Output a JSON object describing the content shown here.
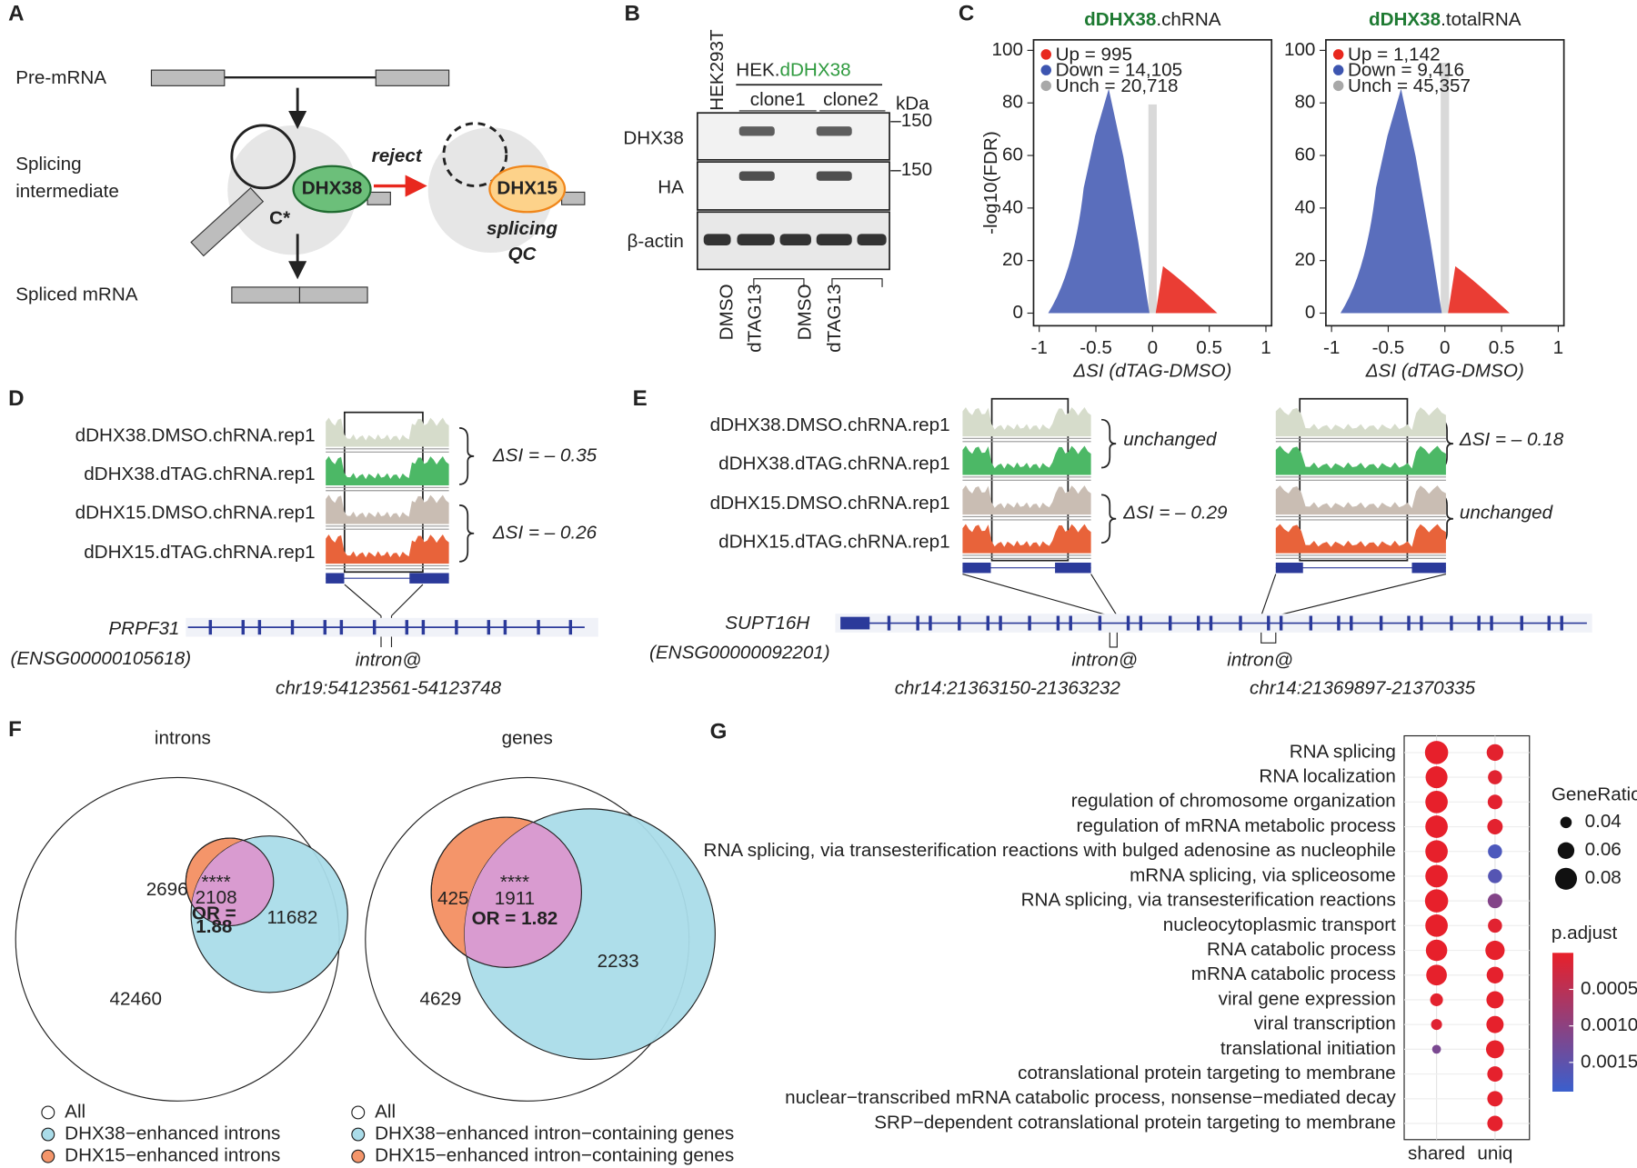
{
  "A": {
    "label": "A",
    "pre_mrna": "Pre-mRNA",
    "intermediate": [
      "Splicing",
      "intermediate"
    ],
    "spliced_mrna": "Spliced mRNA",
    "dhx38": "DHX38",
    "dhx15": "DHX15",
    "reject": "reject",
    "c_star": "C*",
    "qc": [
      "splicing",
      "QC"
    ]
  },
  "B": {
    "label": "B",
    "cell_line": "HEK293T",
    "line_prefix": "HEK.",
    "line_name": "dDHX38",
    "clones": [
      "clone1",
      "clone2"
    ],
    "kda": "kDa",
    "blots": [
      "DHX38",
      "HA",
      "β-actin"
    ],
    "markers": [
      "–150",
      "–150"
    ],
    "treatments": [
      "DMSO",
      "dTAG13",
      "DMSO",
      "dTAG13"
    ]
  },
  "C": {
    "label": "C",
    "type": "scatter",
    "ylabel": "-log10(FDR)",
    "xlim": [
      -1.05,
      1.05
    ],
    "xticks": [
      -1,
      -0.5,
      0,
      0.5,
      1
    ],
    "ylim": [
      -4.8,
      104
    ],
    "yticks": [
      0,
      20,
      40,
      60,
      80,
      100
    ],
    "plots": [
      {
        "title_bold": "dDHX38",
        "title_rest": ".chRNA",
        "xlabel": "ΔSI (dTAG-DMSO)",
        "legend": [
          {
            "label": "Up = 995",
            "color": "#e8281e"
          },
          {
            "label": "Down = 14,105",
            "color": "#3d55b0"
          },
          {
            "label": "Unch = 20,718",
            "color": "#a8a8a8"
          }
        ]
      },
      {
        "title_bold": "dDHX38",
        "title_rest": ".totalRNA",
        "xlabel": "ΔSI (dTAG-DMSO)",
        "legend": [
          {
            "label": "Up = 1,142",
            "color": "#e8281e"
          },
          {
            "label": "Down = 9,416",
            "color": "#3d55b0"
          },
          {
            "label": "Unch = 45,357",
            "color": "#a8a8a8"
          }
        ]
      }
    ]
  },
  "D": {
    "label": "D",
    "tracks": [
      "dDHX38.DMSO.chRNA.rep1",
      "dDHX38.dTAG.chRNA.rep1",
      "dDHX15.DMSO.chRNA.rep1",
      "dDHX15.dTAG.chRNA.rep1"
    ],
    "track_colors": [
      "#8c8c8c",
      "#1e8a3a",
      "#8c8c8c",
      "#e8542a"
    ],
    "delta_si": [
      "ΔSI = – 0.35",
      "ΔSI = – 0.26"
    ],
    "gene": "PRPF31",
    "gene_id": "(ENSG00000105618)",
    "intron": "intron@",
    "coords": "chr19:54123561-54123748"
  },
  "E": {
    "label": "E",
    "tracks": [
      "dDHX38.DMSO.chRNA.rep1",
      "dDHX38.dTAG.chRNA.rep1",
      "dDHX15.DMSO.chRNA.rep1",
      "dDHX15.dTAG.chRNA.rep1"
    ],
    "left_notes": [
      "unchanged",
      "ΔSI = – 0.29"
    ],
    "right_notes": [
      "ΔSI = – 0.18",
      "unchanged"
    ],
    "gene": "SUPT16H",
    "gene_id": "(ENSG00000092201)",
    "introns": [
      {
        "label": "intron@",
        "coords": "chr14:21363150-21363232"
      },
      {
        "label": "intron@",
        "coords": "chr14:21369897-21370335"
      }
    ]
  },
  "F": {
    "label": "F",
    "venns": [
      {
        "title": "introns",
        "only_dhx15": 2696,
        "overlap": 2108,
        "stars": "****",
        "odds_ratio": [
          "OR =",
          "1.88"
        ],
        "only_dhx38": 11682,
        "rest": 42460,
        "legend": [
          "All",
          "DHX38−enhanced introns",
          "DHX15−enhanced introns"
        ]
      },
      {
        "title": "genes",
        "only_dhx15": 425,
        "overlap": 1911,
        "stars": "****",
        "odds_ratio": [
          "OR = 1.82"
        ],
        "only_dhx38": 2233,
        "rest": 4629,
        "legend": [
          "All",
          "DHX38−enhanced intron−containing genes",
          "DHX15−enhanced intron−containing genes"
        ]
      }
    ]
  },
  "G": {
    "label": "G",
    "type": "dot",
    "terms": [
      "RNA splicing",
      "RNA localization",
      "regulation of chromosome organization",
      "regulation of mRNA metabolic process",
      "RNA splicing, via transesterification reactions with bulged adenosine as nucleophile",
      "mRNA splicing, via spliceosome",
      "RNA splicing, via transesterification reactions",
      "nucleocytoplasmic transport",
      "RNA catabolic process",
      "mRNA catabolic process",
      "viral gene expression",
      "viral transcription",
      "translational initiation",
      "cotranslational protein targeting to membrane",
      "nuclear−transcribed mRNA catabolic process, nonsense−mediated decay",
      "SRP−dependent cotranslational protein targeting to membrane"
    ],
    "series": [
      {
        "name": "shared",
        "gene_ratio": [
          0.085,
          0.08,
          0.082,
          0.082,
          0.082,
          0.082,
          0.085,
          0.082,
          0.078,
          0.075,
          0.045,
          0.038,
          0.03,
          null,
          null,
          null
        ],
        "p_adjust": [
          1e-05,
          1e-05,
          1e-05,
          1e-05,
          1e-05,
          1e-05,
          1e-05,
          1e-05,
          1e-05,
          2e-05,
          5e-05,
          0.0001,
          0.0012,
          null,
          null,
          null
        ]
      },
      {
        "name": "uniq",
        "gene_ratio": [
          0.06,
          0.05,
          0.052,
          0.055,
          0.05,
          0.05,
          0.052,
          0.05,
          0.07,
          0.06,
          0.062,
          0.062,
          0.065,
          0.055,
          0.055,
          0.055
        ],
        "p_adjust": [
          5e-05,
          8e-05,
          6e-05,
          6e-05,
          0.0017,
          0.0016,
          0.0011,
          8e-05,
          2e-05,
          3e-05,
          2e-05,
          2e-05,
          2e-05,
          3e-05,
          3e-05,
          3e-05
        ]
      }
    ],
    "size_title": "GeneRatio",
    "size_ticks": [
      0.04,
      0.06,
      0.08
    ],
    "color_title": "p.adjust",
    "clim": [
      0,
      0.0019
    ],
    "color_ticks": [
      0.0005,
      {
        "value": 0.001,
        "label": "0.0010"
      },
      0.0015
    ],
    "colors": [
      "#e8202a",
      "#3a5fcd"
    ]
  }
}
